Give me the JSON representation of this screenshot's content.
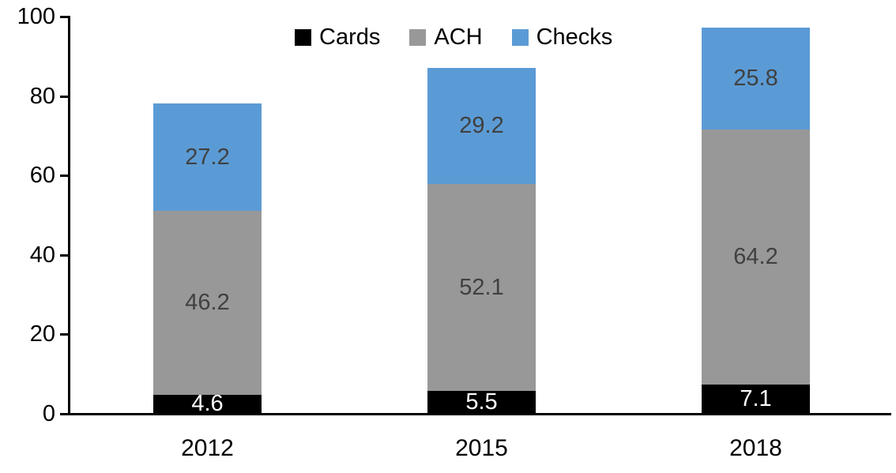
{
  "chart_data": {
    "type": "bar",
    "subtype": "stacked-vertical",
    "title": "",
    "xlabel": "",
    "ylabel": "",
    "categories": [
      "2012",
      "2015",
      "2018"
    ],
    "series": [
      {
        "name": "Cards",
        "color": "#000000",
        "label_color": "#FFFFFF",
        "values": [
          4.6,
          5.5,
          7.1
        ]
      },
      {
        "name": "ACH",
        "color": "#989898",
        "label_color": "#404040",
        "values": [
          46.2,
          52.1,
          64.2
        ]
      },
      {
        "name": "Checks",
        "color": "#5B9BD5",
        "label_color": "#404040",
        "values": [
          27.2,
          29.2,
          25.8
        ]
      }
    ],
    "stack_totals": [
      78.0,
      86.8,
      97.1
    ],
    "y_axis": {
      "min": 0,
      "max": 100,
      "ticks": [
        0,
        20,
        40,
        60,
        80,
        100
      ]
    },
    "legend": {
      "position": "top",
      "labels": [
        "Cards",
        "ACH",
        "Checks"
      ]
    },
    "grid": false,
    "data_labels_shown": true
  },
  "colors": {
    "background": "#FFFFFF",
    "axis": "#000000",
    "tick_label": "#000000",
    "value_label_on_dark": "#FFFFFF",
    "value_label_on_light": "#404040"
  }
}
